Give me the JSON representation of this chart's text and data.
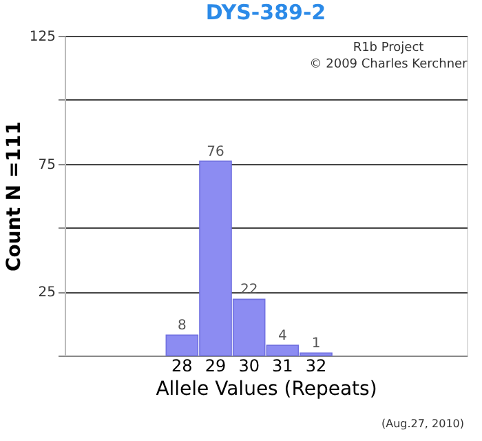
{
  "chart_data": {
    "type": "bar",
    "title": "DYS-389-2",
    "xlabel": "Allele Values (Repeats)",
    "ylabel": "Count N =111",
    "categories": [
      null,
      null,
      null,
      "28",
      "29",
      "30",
      "31",
      "32",
      null,
      null,
      null,
      null
    ],
    "values": [
      null,
      null,
      null,
      8,
      76,
      22,
      4,
      1,
      null,
      null,
      null,
      null
    ],
    "color": "#8c8cf2",
    "data_labels": true,
    "ylim": [
      0,
      125
    ],
    "yticks": [
      {
        "value": 0,
        "label": null
      },
      25,
      {
        "value": 50,
        "label": null
      },
      75,
      {
        "value": 100,
        "label": null
      },
      125
    ],
    "grid": "y",
    "annotations": [
      "R1b Project",
      "© 2009 Charles Kerchner",
      "(Aug.27, 2010)"
    ]
  }
}
